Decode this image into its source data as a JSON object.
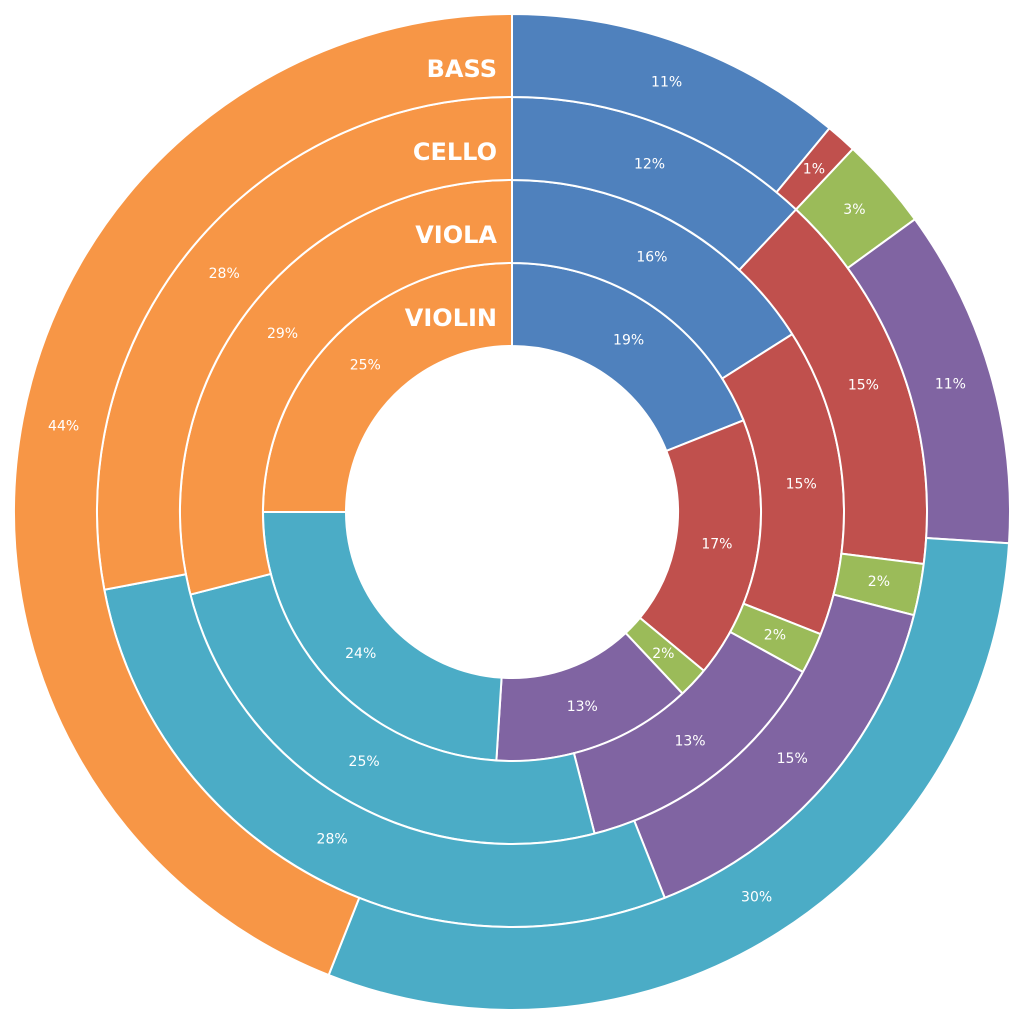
{
  "chart_data": {
    "type": "pie",
    "subtype": "multi-level-donut",
    "colors": [
      "#4F81BD",
      "#C0504D",
      "#9BBB59",
      "#8064A2",
      "#4BACC6",
      "#F79646"
    ],
    "rings": [
      {
        "name": "VIOLIN",
        "values": [
          19,
          17,
          2,
          13,
          24,
          25
        ],
        "labels": [
          "19%",
          "17%",
          "2%",
          "13%",
          "24%",
          "25%"
        ]
      },
      {
        "name": "VIOLA",
        "values": [
          16,
          15,
          2,
          13,
          25,
          29
        ],
        "labels": [
          "16%",
          "15%",
          "2%",
          "13%",
          "25%",
          "29%"
        ]
      },
      {
        "name": "CELLO",
        "values": [
          12,
          15,
          2,
          15,
          28,
          28
        ],
        "labels": [
          "12%",
          "15%",
          "2%",
          "15%",
          "28%",
          "28%"
        ]
      },
      {
        "name": "BASS",
        "values": [
          11,
          1,
          3,
          11,
          30,
          44
        ],
        "labels": [
          "11%",
          "1%",
          "3%",
          "11%",
          "30%",
          "44%"
        ]
      }
    ]
  }
}
